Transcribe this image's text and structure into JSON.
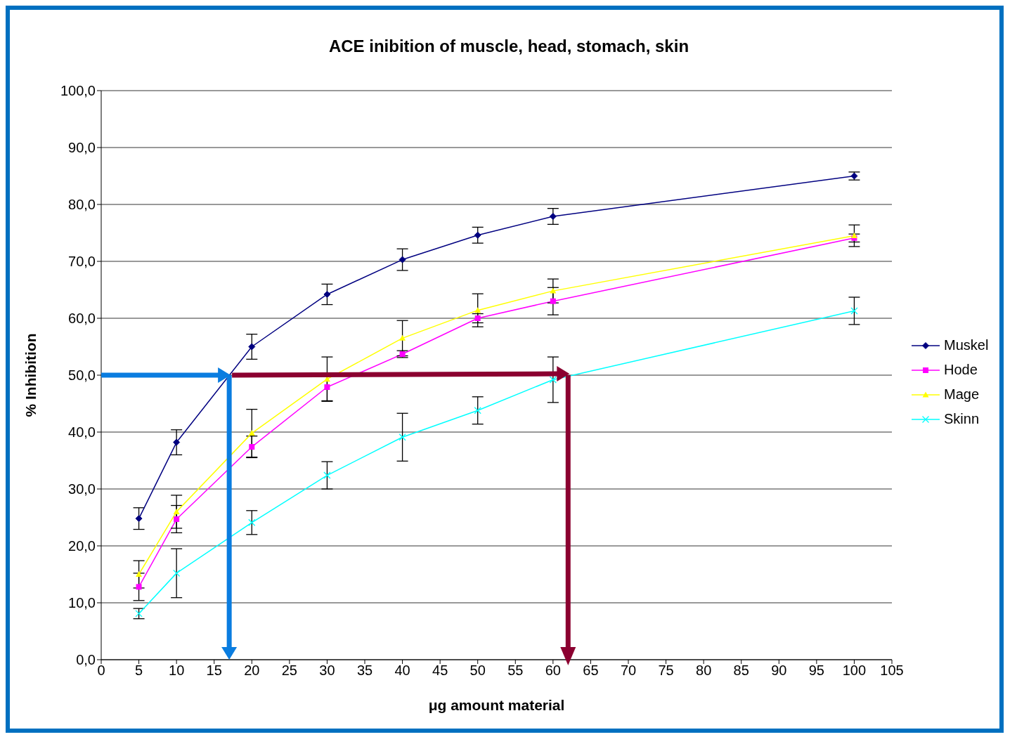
{
  "chart_data": {
    "type": "line",
    "title": "ACE inibition of muscle, head, stomach, skin",
    "xlabel": "μg amount material",
    "ylabel": "% Inhibition",
    "x": [
      5,
      10,
      20,
      30,
      40,
      50,
      60,
      100
    ],
    "series": [
      {
        "name": "Muskel",
        "color": "#000080",
        "marker": "diamond",
        "values": [
          24.8,
          38.2,
          55.0,
          64.2,
          70.3,
          74.6,
          77.9,
          85.0
        ],
        "errors": [
          1.9,
          2.2,
          2.2,
          1.8,
          1.9,
          1.4,
          1.4,
          0.7
        ]
      },
      {
        "name": "Hode",
        "color": "#ff00ff",
        "marker": "square",
        "values": [
          12.8,
          24.7,
          37.4,
          47.9,
          53.7,
          60.0,
          63.0,
          74.1
        ],
        "errors": [
          2.4,
          2.4,
          1.9,
          2.4,
          0.6,
          0.8,
          2.4,
          0.7
        ]
      },
      {
        "name": "Mage",
        "color": "#ffff00",
        "marker": "triangle",
        "values": [
          15.0,
          26.0,
          39.8,
          49.3,
          56.5,
          61.4,
          64.8,
          74.5
        ],
        "errors": [
          2.4,
          2.9,
          4.2,
          3.9,
          3.1,
          2.9,
          2.1,
          1.9
        ]
      },
      {
        "name": "Skinn",
        "color": "#00ffff",
        "marker": "cross",
        "values": [
          8.1,
          15.2,
          24.1,
          32.4,
          39.1,
          43.8,
          49.2,
          61.3
        ],
        "errors": [
          0.9,
          4.3,
          2.1,
          2.4,
          4.2,
          2.4,
          4.0,
          2.4
        ]
      }
    ],
    "xlim": [
      0,
      105
    ],
    "xticks": [
      0,
      5,
      10,
      15,
      20,
      25,
      30,
      35,
      40,
      45,
      50,
      55,
      60,
      65,
      70,
      75,
      80,
      85,
      90,
      95,
      100,
      105
    ],
    "ylim": [
      0,
      100
    ],
    "yticks": [
      {
        "value": 0,
        "label": "0,0"
      },
      {
        "value": 10,
        "label": "10,0"
      },
      {
        "value": 20,
        "label": "20,0"
      },
      {
        "value": 30,
        "label": "30,0"
      },
      {
        "value": 40,
        "label": "40,0"
      },
      {
        "value": 50,
        "label": "50,0"
      },
      {
        "value": 60,
        "label": "60,0"
      },
      {
        "value": 70,
        "label": "70,0"
      },
      {
        "value": 80,
        "label": "80,0"
      },
      {
        "value": 90,
        "label": "90,0"
      },
      {
        "value": 100,
        "label": "100,0"
      }
    ],
    "grid": "y",
    "legend": "right",
    "line_style": "solid"
  }
}
